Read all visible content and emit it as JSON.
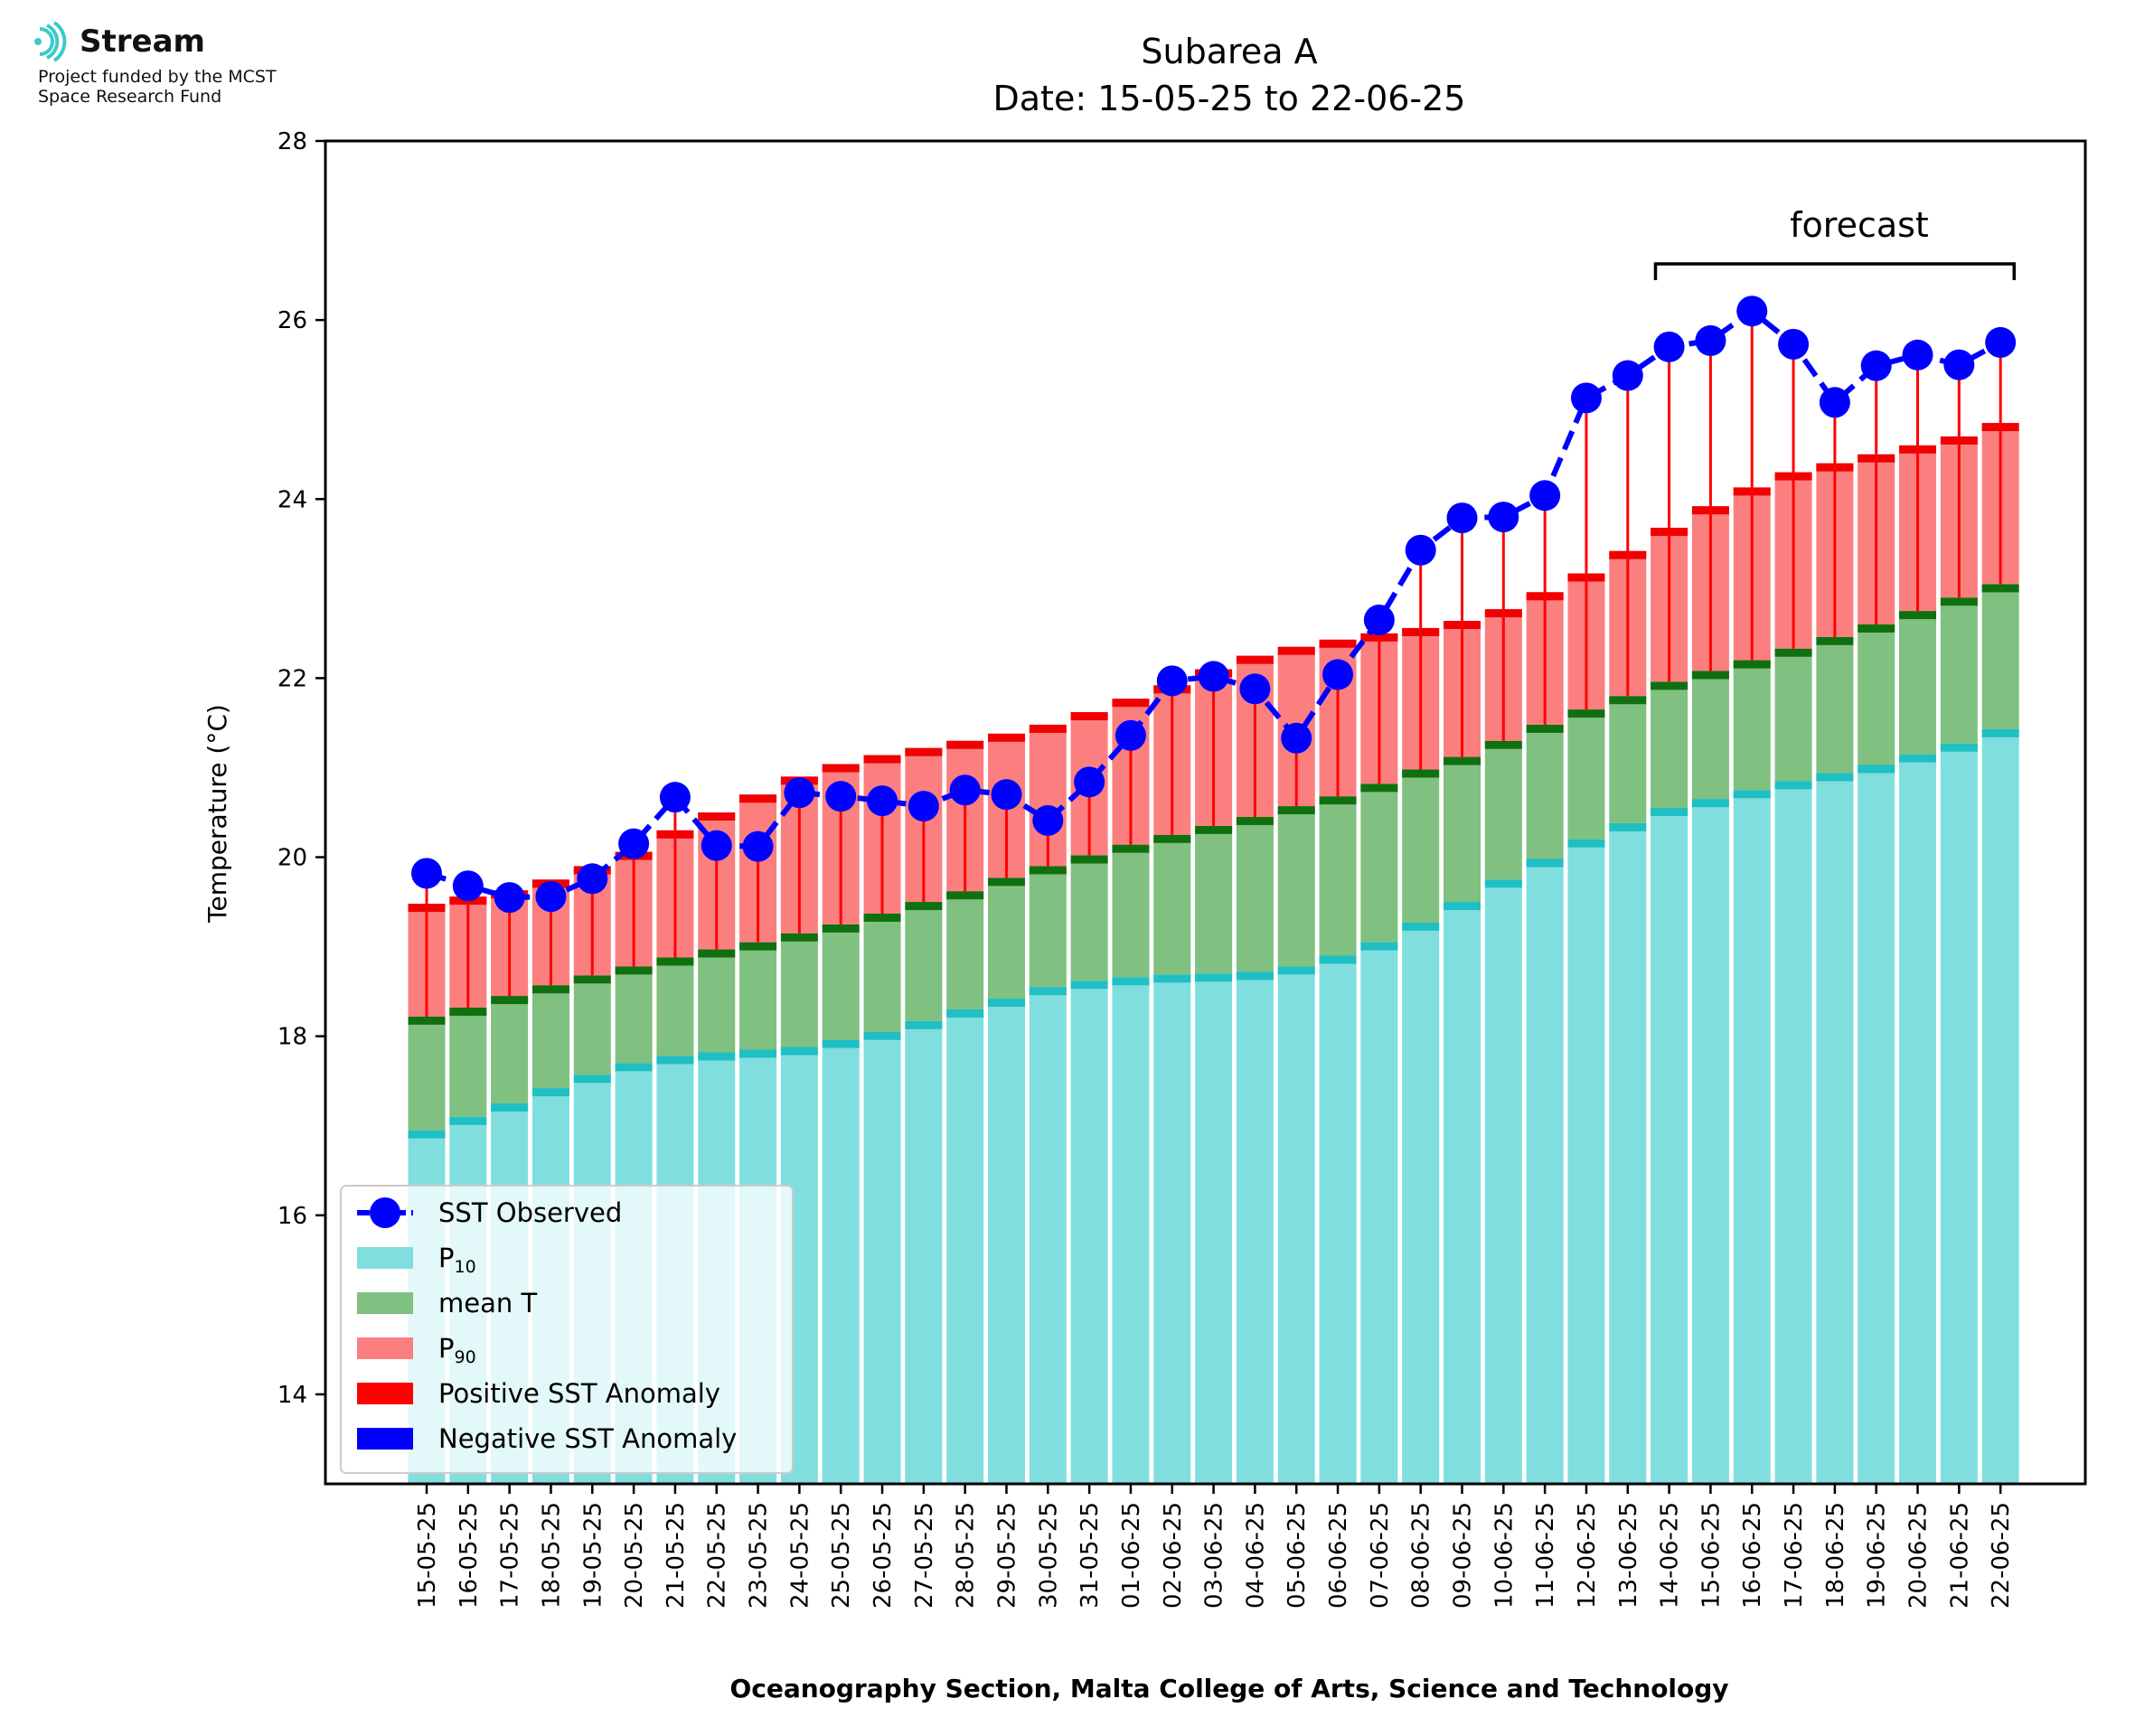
{
  "logo": {
    "name": "Stream",
    "line1": "Project funded by the MCST",
    "line2": "Space Research Fund"
  },
  "chart_data": {
    "type": "bar",
    "title": "Subarea A",
    "subtitle": "Date: 15-05-25 to 22-06-25",
    "xlabel": "Oceanography Section, Malta College of Arts, Science and Technology",
    "ylabel": "Temperature (°C)",
    "ylim": [
      13,
      28
    ],
    "yticks": [
      14,
      16,
      18,
      20,
      22,
      24,
      26,
      28
    ],
    "grid": false,
    "legend_position": "lower-left",
    "forecast_label": "forecast",
    "forecast_range": [
      "14-06-25",
      "22-06-25"
    ],
    "colors": {
      "p10": "#80dede",
      "p10_edge": "#1fbfc4",
      "mean": "#80c080",
      "mean_edge": "#107010",
      "p90": "#fb7f7f",
      "p90_edge": "#f00000",
      "positive_anomaly": "#ff0000",
      "negative_anomaly": "#0000ff",
      "sst": "#0000ff"
    },
    "legend": [
      {
        "key": "sst",
        "label": "SST Observed",
        "sub": ""
      },
      {
        "key": "p10",
        "label": "P",
        "sub": "10"
      },
      {
        "key": "mean",
        "label": "mean T",
        "sub": ""
      },
      {
        "key": "p90",
        "label": "P",
        "sub": "90"
      },
      {
        "key": "positive_anomaly",
        "label": "Positive SST Anomaly",
        "sub": ""
      },
      {
        "key": "negative_anomaly",
        "label": "Negative SST Anomaly",
        "sub": ""
      }
    ],
    "categories": [
      "15-05-25",
      "16-05-25",
      "17-05-25",
      "18-05-25",
      "19-05-25",
      "20-05-25",
      "21-05-25",
      "22-05-25",
      "23-05-25",
      "24-05-25",
      "25-05-25",
      "26-05-25",
      "27-05-25",
      "28-05-25",
      "29-05-25",
      "30-05-25",
      "31-05-25",
      "01-06-25",
      "02-06-25",
      "03-06-25",
      "04-06-25",
      "05-06-25",
      "06-06-25",
      "07-06-25",
      "08-06-25",
      "09-06-25",
      "10-06-25",
      "11-06-25",
      "12-06-25",
      "13-06-25",
      "14-06-25",
      "15-06-25",
      "16-06-25",
      "17-06-25",
      "18-06-25",
      "19-06-25",
      "20-06-25",
      "21-06-25",
      "22-06-25"
    ],
    "series": [
      {
        "name": "P10",
        "values": [
          16.95,
          17.1,
          17.25,
          17.42,
          17.57,
          17.7,
          17.78,
          17.82,
          17.85,
          17.88,
          17.96,
          18.05,
          18.17,
          18.3,
          18.42,
          18.55,
          18.62,
          18.66,
          18.69,
          18.7,
          18.72,
          18.78,
          18.9,
          19.05,
          19.27,
          19.5,
          19.75,
          19.98,
          20.2,
          20.38,
          20.55,
          20.65,
          20.75,
          20.85,
          20.94,
          21.03,
          21.15,
          21.27,
          21.43
        ]
      },
      {
        "name": "mean T",
        "values": [
          18.22,
          18.32,
          18.45,
          18.57,
          18.68,
          18.78,
          18.88,
          18.97,
          19.05,
          19.15,
          19.25,
          19.37,
          19.5,
          19.62,
          19.77,
          19.9,
          20.02,
          20.14,
          20.25,
          20.35,
          20.45,
          20.57,
          20.68,
          20.82,
          20.98,
          21.12,
          21.3,
          21.48,
          21.65,
          21.8,
          21.96,
          22.08,
          22.2,
          22.33,
          22.46,
          22.6,
          22.75,
          22.9,
          23.05
        ]
      },
      {
        "name": "P90",
        "values": [
          19.48,
          19.56,
          19.63,
          19.75,
          19.9,
          20.06,
          20.3,
          20.5,
          20.7,
          20.9,
          21.04,
          21.14,
          21.22,
          21.3,
          21.38,
          21.48,
          21.62,
          21.77,
          21.92,
          22.1,
          22.25,
          22.35,
          22.43,
          22.5,
          22.56,
          22.64,
          22.77,
          22.96,
          23.17,
          23.42,
          23.68,
          23.92,
          24.13,
          24.3,
          24.4,
          24.5,
          24.6,
          24.7,
          24.85
        ]
      },
      {
        "name": "SST Observed",
        "values": [
          19.82,
          19.68,
          19.55,
          19.56,
          19.76,
          20.15,
          20.67,
          20.13,
          20.12,
          20.72,
          20.68,
          20.63,
          20.57,
          20.75,
          20.7,
          20.41,
          20.84,
          21.36,
          21.97,
          22.02,
          21.88,
          21.33,
          22.04,
          22.65,
          23.43,
          23.79,
          23.8,
          24.04,
          25.13,
          25.38,
          25.7,
          25.77,
          26.1,
          25.73,
          25.08,
          25.49,
          25.61,
          25.5,
          25.75
        ]
      }
    ]
  }
}
